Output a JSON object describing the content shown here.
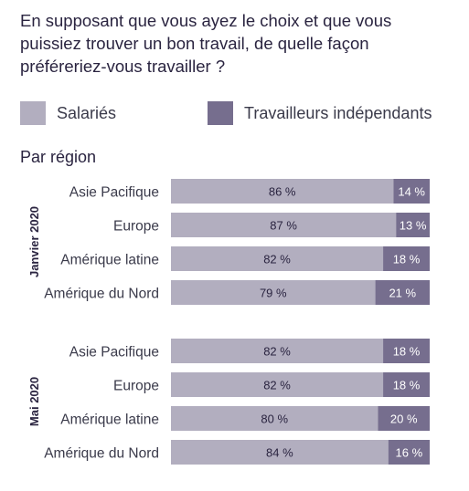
{
  "question": "En supposant que vous ayez le choix et que vous puissiez trouver un bon travail, de quelle façon préféreriez-vous travailler ?",
  "subtitle": "Par région",
  "colors": {
    "salaried": "#b2aebf",
    "independent": "#766e8e",
    "text": "#2a2440"
  },
  "chart_data": {
    "type": "bar",
    "orientation": "horizontal",
    "stacked": true,
    "percent": true,
    "xlim": [
      0,
      100
    ],
    "legend_position": "top",
    "legend": [
      "Salariés",
      "Travailleurs indépendants"
    ],
    "groups": [
      {
        "name": "Janvier 2020",
        "categories": [
          "Asie Pacifique",
          "Europe",
          "Amérique latine",
          "Amérique du Nord"
        ],
        "series": [
          {
            "name": "Salariés",
            "values": [
              86,
              87,
              82,
              79
            ],
            "labels": [
              "86 %",
              "87 %",
              "82 %",
              "79 %"
            ]
          },
          {
            "name": "Travailleurs indépendants",
            "values": [
              14,
              13,
              18,
              21
            ],
            "labels": [
              "14 %",
              "13 %",
              "18 %",
              "21 %"
            ]
          }
        ]
      },
      {
        "name": "Mai 2020",
        "categories": [
          "Asie Pacifique",
          "Europe",
          "Amérique latine",
          "Amérique du Nord"
        ],
        "series": [
          {
            "name": "Salariés",
            "values": [
              82,
              82,
              80,
              84
            ],
            "labels": [
              "82 %",
              "82 %",
              "80 %",
              "84 %"
            ]
          },
          {
            "name": "Travailleurs indépendants",
            "values": [
              18,
              18,
              20,
              16
            ],
            "labels": [
              "18 %",
              "18 %",
              "20 %",
              "16 %"
            ]
          }
        ]
      }
    ]
  }
}
